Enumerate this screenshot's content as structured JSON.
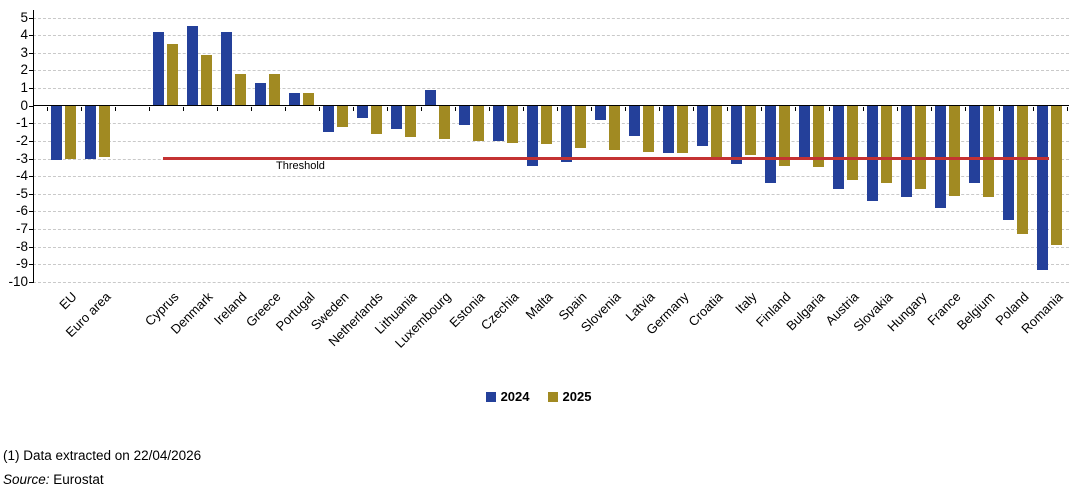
{
  "chart_data": {
    "type": "bar",
    "title": "",
    "xlabel": "",
    "ylabel": "",
    "categories": [
      "EU",
      "Euro area",
      "",
      "Cyprus",
      "Denmark",
      "Ireland",
      "Greece",
      "Portugal",
      "Sweden",
      "Netherlands",
      "Lithuania",
      "Luxembourg",
      "Estonia",
      "Czechia",
      "Malta",
      "Spain",
      "Slovenia",
      "Latvia",
      "Germany",
      "Croatia",
      "Italy",
      "Finland",
      "Bulgaria",
      "Austria",
      "Slovakia",
      "Hungary",
      "France",
      "Belgium",
      "Poland",
      "Romania"
    ],
    "series": [
      {
        "name": "2024",
        "color": "#24409a",
        "values": [
          -3.1,
          -3.0,
          null,
          4.2,
          4.5,
          4.2,
          1.3,
          0.7,
          -1.5,
          -0.7,
          -1.3,
          0.9,
          -1.1,
          -2.0,
          -3.4,
          -3.2,
          -0.8,
          -1.7,
          -2.7,
          -2.3,
          -3.3,
          -4.4,
          -2.9,
          -4.7,
          -5.4,
          -5.2,
          -5.8,
          -4.4,
          -6.5,
          -9.3
        ]
      },
      {
        "name": "2025",
        "color": "#a18a22",
        "values": [
          -3.0,
          -2.9,
          null,
          3.5,
          2.9,
          1.8,
          1.8,
          0.7,
          -1.2,
          -1.6,
          -1.8,
          -1.9,
          -2.0,
          -2.1,
          -2.2,
          -2.4,
          -2.5,
          -2.6,
          -2.7,
          -2.9,
          -2.8,
          -3.4,
          -3.5,
          -4.2,
          -4.4,
          -4.7,
          -5.1,
          -5.2,
          -7.3,
          -7.9
        ]
      }
    ],
    "ylim": [
      -10,
      5
    ],
    "ytick_step": 1,
    "grid": "horizontal-dashed",
    "gridline_color": "#c9c9c9",
    "threshold": {
      "value": -3,
      "label": "Threshold",
      "color": "#c43232"
    },
    "legend_position": "bottom-center"
  },
  "legend": {
    "items": [
      {
        "label": "2024",
        "color": "#24409a"
      },
      {
        "label": "2025",
        "color": "#a18a22"
      }
    ]
  },
  "footnotes": {
    "extraction_note": "(1) Data extracted on 22/04/2026",
    "source_prefix": "Source:",
    "source_name": "Eurostat"
  }
}
